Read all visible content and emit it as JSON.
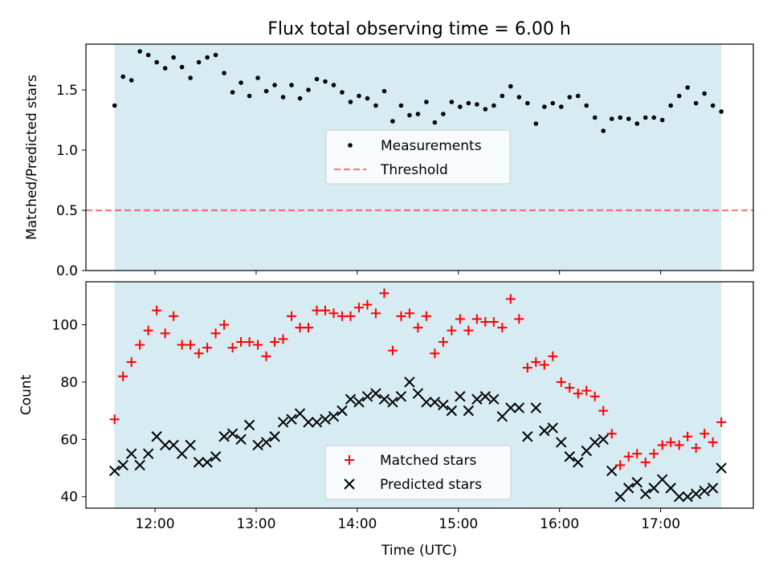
{
  "title": "Flux total observing time = 6.00 h",
  "colors": {
    "observing_band": "#add8e6",
    "threshold": "#ff0000",
    "measurements": "#000000",
    "matched": "#ff0000",
    "predicted": "#000000"
  },
  "chart_data": [
    {
      "type": "scatter",
      "panel": "top",
      "xlabel": "",
      "ylabel": "Matched/Predicted stars",
      "xlim": [
        "11:19",
        "17:55"
      ],
      "ylim": [
        0,
        1.88
      ],
      "yticks": [
        0.0,
        0.5,
        1.0,
        1.5
      ],
      "ytick_labels": [
        "0.0",
        "0.5",
        "1.0",
        "1.5"
      ],
      "observing_band": [
        "11:36",
        "17:36"
      ],
      "threshold": 0.5,
      "legend_position": "center",
      "legend": {
        "measurements": "Measurements",
        "threshold": "Threshold"
      },
      "series": [
        {
          "name": "Measurements",
          "x": [
            "11:36",
            "11:41",
            "11:46",
            "11:51",
            "11:56",
            "12:01",
            "12:06",
            "12:11",
            "12:16",
            "12:21",
            "12:26",
            "12:31",
            "12:36",
            "12:41",
            "12:46",
            "12:51",
            "12:56",
            "13:01",
            "13:06",
            "13:11",
            "13:16",
            "13:21",
            "13:26",
            "13:31",
            "13:36",
            "13:41",
            "13:46",
            "13:51",
            "13:56",
            "14:01",
            "14:06",
            "14:11",
            "14:16",
            "14:21",
            "14:26",
            "14:31",
            "14:36",
            "14:41",
            "14:46",
            "14:51",
            "14:56",
            "15:01",
            "15:06",
            "15:11",
            "15:16",
            "15:21",
            "15:26",
            "15:31",
            "15:36",
            "15:41",
            "15:46",
            "15:51",
            "15:56",
            "16:01",
            "16:06",
            "16:11",
            "16:16",
            "16:21",
            "16:26",
            "16:31",
            "16:36",
            "16:41",
            "16:46",
            "16:51",
            "16:56",
            "17:01",
            "17:06",
            "17:11",
            "17:16",
            "17:21",
            "17:26",
            "17:31",
            "17:36"
          ],
          "y": [
            1.37,
            1.61,
            1.58,
            1.82,
            1.79,
            1.73,
            1.68,
            1.77,
            1.69,
            1.6,
            1.73,
            1.77,
            1.79,
            1.64,
            1.48,
            1.56,
            1.45,
            1.6,
            1.49,
            1.54,
            1.44,
            1.54,
            1.43,
            1.5,
            1.59,
            1.57,
            1.54,
            1.48,
            1.4,
            1.45,
            1.43,
            1.37,
            1.49,
            1.24,
            1.37,
            1.29,
            1.3,
            1.4,
            1.23,
            1.3,
            1.4,
            1.36,
            1.39,
            1.38,
            1.34,
            1.37,
            1.45,
            1.53,
            1.44,
            1.39,
            1.22,
            1.36,
            1.39,
            1.36,
            1.44,
            1.45,
            1.37,
            1.27,
            1.16,
            1.26,
            1.27,
            1.26,
            1.22,
            1.27,
            1.27,
            1.25,
            1.37,
            1.45,
            1.52,
            1.39,
            1.47,
            1.37,
            1.32
          ]
        }
      ]
    },
    {
      "type": "scatter",
      "panel": "bottom",
      "xlabel": "Time (UTC)",
      "ylabel": "Count",
      "xlim": [
        "11:19",
        "17:55"
      ],
      "ylim": [
        36,
        115
      ],
      "xticks": [
        "12:00",
        "13:00",
        "14:00",
        "15:00",
        "16:00",
        "17:00"
      ],
      "yticks": [
        40,
        60,
        80,
        100
      ],
      "observing_band": [
        "11:36",
        "17:36"
      ],
      "legend_position": "lower center",
      "series": [
        {
          "name": "Matched stars",
          "x": [
            "11:36",
            "11:41",
            "11:46",
            "11:51",
            "11:56",
            "12:01",
            "12:06",
            "12:11",
            "12:16",
            "12:21",
            "12:26",
            "12:31",
            "12:36",
            "12:41",
            "12:46",
            "12:51",
            "12:56",
            "13:01",
            "13:06",
            "13:11",
            "13:16",
            "13:21",
            "13:26",
            "13:31",
            "13:36",
            "13:41",
            "13:46",
            "13:51",
            "13:56",
            "14:01",
            "14:06",
            "14:11",
            "14:16",
            "14:21",
            "14:26",
            "14:31",
            "14:36",
            "14:41",
            "14:46",
            "14:51",
            "14:56",
            "15:01",
            "15:06",
            "15:11",
            "15:16",
            "15:21",
            "15:26",
            "15:31",
            "15:36",
            "15:41",
            "15:46",
            "15:51",
            "15:56",
            "16:01",
            "16:06",
            "16:11",
            "16:16",
            "16:21",
            "16:26",
            "16:31",
            "16:36",
            "16:41",
            "16:46",
            "16:51",
            "16:56",
            "17:01",
            "17:06",
            "17:11",
            "17:16",
            "17:21",
            "17:26",
            "17:31",
            "17:36"
          ],
          "y": [
            67,
            82,
            87,
            93,
            98,
            105,
            97,
            103,
            93,
            93,
            90,
            92,
            97,
            100,
            92,
            94,
            94,
            93,
            89,
            94,
            95,
            103,
            99,
            99,
            105,
            105,
            104,
            103,
            103,
            106,
            107,
            104,
            111,
            91,
            103,
            104,
            99,
            103,
            90,
            94,
            98,
            102,
            98,
            102,
            101,
            101,
            99,
            109,
            102,
            85,
            87,
            86,
            89,
            80,
            78,
            76,
            77,
            75,
            70,
            62,
            51,
            54,
            55,
            52,
            55,
            58,
            59,
            58,
            61,
            57,
            62,
            59,
            66
          ]
        },
        {
          "name": "Predicted stars",
          "x": [
            "11:36",
            "11:41",
            "11:46",
            "11:51",
            "11:56",
            "12:01",
            "12:06",
            "12:11",
            "12:16",
            "12:21",
            "12:26",
            "12:31",
            "12:36",
            "12:41",
            "12:46",
            "12:51",
            "12:56",
            "13:01",
            "13:06",
            "13:11",
            "13:16",
            "13:21",
            "13:26",
            "13:31",
            "13:36",
            "13:41",
            "13:46",
            "13:51",
            "13:56",
            "14:01",
            "14:06",
            "14:11",
            "14:16",
            "14:21",
            "14:26",
            "14:31",
            "14:36",
            "14:41",
            "14:46",
            "14:51",
            "14:56",
            "15:01",
            "15:06",
            "15:11",
            "15:16",
            "15:21",
            "15:26",
            "15:31",
            "15:36",
            "15:41",
            "15:46",
            "15:51",
            "15:56",
            "16:01",
            "16:06",
            "16:11",
            "16:16",
            "16:21",
            "16:26",
            "16:31",
            "16:36",
            "16:41",
            "16:46",
            "16:51",
            "16:56",
            "17:01",
            "17:06",
            "17:11",
            "17:16",
            "17:21",
            "17:26",
            "17:31",
            "17:36"
          ],
          "y": [
            49,
            51,
            55,
            51,
            55,
            61,
            58,
            58,
            55,
            58,
            52,
            52,
            54,
            61,
            62,
            60,
            65,
            58,
            59,
            61,
            66,
            67,
            69,
            66,
            66,
            67,
            68,
            70,
            74,
            73,
            75,
            76,
            74,
            73,
            75,
            80,
            76,
            73,
            73,
            72,
            70,
            75,
            70,
            74,
            75,
            74,
            68,
            71,
            71,
            61,
            71,
            63,
            64,
            59,
            54,
            52,
            56,
            59,
            60,
            49,
            40,
            43,
            45,
            41,
            43,
            46,
            43,
            40,
            40,
            41,
            42,
            43,
            50
          ]
        }
      ]
    }
  ]
}
